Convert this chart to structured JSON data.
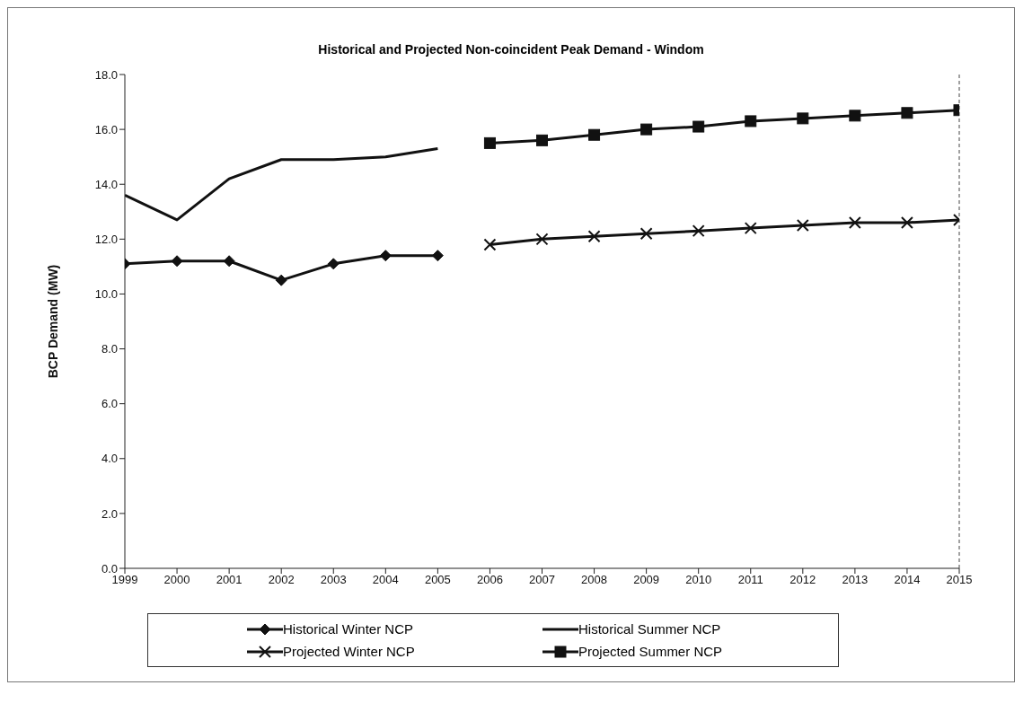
{
  "chart_data": {
    "type": "line",
    "title": "Historical and Projected Non-coincident Peak Demand - Windom",
    "ylabel": "BCP Demand (MW)",
    "x": [
      1999,
      2000,
      2001,
      2002,
      2003,
      2004,
      2005,
      2006,
      2007,
      2008,
      2009,
      2010,
      2011,
      2012,
      2013,
      2014,
      2015
    ],
    "xlim": [
      1999,
      2015
    ],
    "xticks": [
      1999,
      2000,
      2001,
      2002,
      2003,
      2004,
      2005,
      2006,
      2007,
      2008,
      2009,
      2010,
      2011,
      2012,
      2013,
      2014,
      2015
    ],
    "ylim": [
      0,
      18
    ],
    "yticks": [
      {
        "value": 0,
        "label": "0.0"
      },
      {
        "value": 2,
        "label": "2.0"
      },
      {
        "value": 4,
        "label": "4.0"
      },
      {
        "value": 6,
        "label": "6.0"
      },
      {
        "value": 8,
        "label": "8.0"
      },
      {
        "value": 10,
        "label": "10.0"
      },
      {
        "value": 12,
        "label": "12.0"
      },
      {
        "value": 14,
        "label": "14.0"
      },
      {
        "value": 16,
        "label": "16.0"
      },
      {
        "value": 18,
        "label": "18.0"
      }
    ],
    "grid": false,
    "legend": "bottom",
    "series": [
      {
        "name": "Historical Winter NCP",
        "color": "#111111",
        "marker": "diamond",
        "values": [
          11.1,
          11.2,
          11.2,
          10.5,
          11.1,
          11.4,
          11.4,
          null,
          null,
          null,
          null,
          null,
          null,
          null,
          null,
          null,
          null
        ]
      },
      {
        "name": "Historical Summer NCP",
        "color": "#111111",
        "marker": "none",
        "values": [
          13.6,
          12.7,
          14.2,
          14.9,
          14.9,
          15.0,
          15.3,
          null,
          null,
          null,
          null,
          null,
          null,
          null,
          null,
          null,
          null
        ]
      },
      {
        "name": "Projected Winter NCP",
        "color": "#111111",
        "marker": "cross",
        "values": [
          null,
          null,
          null,
          null,
          null,
          null,
          null,
          11.8,
          12.0,
          12.1,
          12.2,
          12.3,
          12.4,
          12.5,
          12.6,
          12.6,
          12.7
        ]
      },
      {
        "name": "Projected Summer NCP",
        "color": "#111111",
        "marker": "square",
        "values": [
          null,
          null,
          null,
          null,
          null,
          null,
          null,
          15.5,
          15.6,
          15.8,
          16.0,
          16.1,
          16.3,
          16.4,
          16.5,
          16.6,
          16.7
        ]
      }
    ]
  }
}
